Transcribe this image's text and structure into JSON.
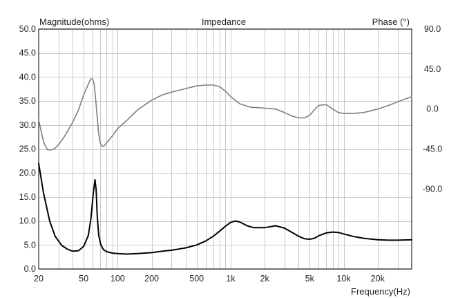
{
  "chart_data": {
    "type": "line",
    "title": "Impedance",
    "ylabel_left": "Magnitude(ohms)",
    "ylabel_right": "Phase (°)",
    "xlabel": "Frequency(Hz)",
    "xscale": "log",
    "xlim": [
      20,
      40000
    ],
    "ylim_left": [
      0,
      50
    ],
    "ylim_right": [
      -180,
      90
    ],
    "grid": true,
    "left_ticks": [
      "0.0",
      "5.0",
      "10.0",
      "15.0",
      "20.0",
      "25.0",
      "30.0",
      "35.0",
      "40.0",
      "45.0",
      "50.0"
    ],
    "left_tick_values": [
      0,
      5,
      10,
      15,
      20,
      25,
      30,
      35,
      40,
      45,
      50
    ],
    "right_ticks": [
      "-90.0",
      "-45.0",
      "0.0",
      "45.0",
      "90.0"
    ],
    "right_tick_values": [
      -90,
      -45,
      0,
      45,
      90
    ],
    "x_ticks": [
      "20",
      "50",
      "100",
      "200",
      "500",
      "1k",
      "2k",
      "5k",
      "10k",
      "20k"
    ],
    "x_tick_values": [
      20,
      50,
      100,
      200,
      500,
      1000,
      2000,
      5000,
      10000,
      20000
    ],
    "series": [
      {
        "axis": "left",
        "color": "#000000",
        "x": [
          20,
          22,
          25,
          28,
          32,
          36,
          40,
          45,
          50,
          55,
          58,
          61,
          63,
          64.5,
          66,
          68,
          71,
          75,
          80,
          90,
          100,
          120,
          150,
          200,
          250,
          300,
          400,
          500,
          600,
          700,
          800,
          900,
          1000,
          1100,
          1200,
          1400,
          1600,
          2000,
          2500,
          3000,
          3500,
          4000,
          4500,
          5000,
          5500,
          6000,
          7000,
          8000,
          9000,
          10000,
          12000,
          15000,
          20000,
          25000,
          30000,
          40000
        ],
        "values": [
          22.0,
          16.0,
          10.0,
          6.8,
          4.9,
          4.1,
          3.7,
          3.8,
          4.7,
          7.0,
          10.5,
          16.0,
          18.6,
          16.5,
          11.0,
          7.0,
          5.0,
          4.0,
          3.6,
          3.3,
          3.2,
          3.1,
          3.2,
          3.4,
          3.7,
          3.9,
          4.4,
          5.0,
          5.8,
          6.8,
          7.9,
          8.9,
          9.7,
          10.0,
          9.8,
          9.0,
          8.6,
          8.6,
          9.0,
          8.5,
          7.6,
          6.8,
          6.3,
          6.2,
          6.4,
          6.9,
          7.5,
          7.7,
          7.6,
          7.3,
          6.8,
          6.4,
          6.1,
          6.0,
          6.0,
          6.1
        ]
      },
      {
        "axis": "right",
        "color": "#7f7f7f",
        "x": [
          20,
          21,
          22,
          23,
          24,
          26,
          28,
          30,
          33,
          36,
          40,
          45,
          50,
          55,
          58,
          60,
          62,
          64,
          66,
          68,
          70,
          73,
          75,
          80,
          90,
          100,
          120,
          150,
          200,
          250,
          300,
          400,
          500,
          600,
          700,
          800,
          900,
          1000,
          1200,
          1500,
          2000,
          2500,
          3000,
          3500,
          4000,
          4500,
          5000,
          5500,
          6000,
          7000,
          8000,
          9000,
          10000,
          12000,
          15000,
          20000,
          25000,
          30000,
          40000
        ],
        "values": [
          -12,
          -25,
          -36,
          -42,
          -46,
          -46,
          -44,
          -40,
          -33,
          -25,
          -15,
          -1,
          16,
          28,
          34,
          34,
          28,
          10,
          -10,
          -28,
          -38,
          -42,
          -42,
          -38,
          -30,
          -22,
          -13,
          -1,
          10,
          16,
          19,
          23,
          26,
          27,
          27,
          25,
          20,
          14,
          6,
          2,
          1,
          0,
          -4,
          -8,
          -10,
          -10,
          -7,
          -1,
          4,
          5,
          0,
          -4,
          -5,
          -5,
          -4,
          0,
          4,
          8,
          14
        ]
      }
    ]
  }
}
